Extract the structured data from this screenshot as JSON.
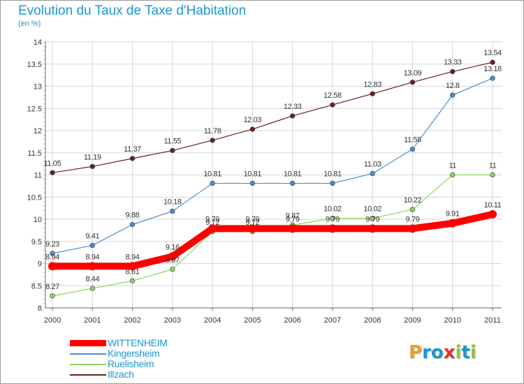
{
  "header": {
    "title": "Evolution du Taux de Taxe d'Habitation",
    "subtitle": "(en %)"
  },
  "logo": {
    "letters": [
      "P",
      "r",
      "o",
      "x",
      "i",
      "t",
      "i"
    ],
    "colors": [
      "#e8a02a",
      "#1c96d1",
      "#1c96d1",
      "#e5312b",
      "#8cc63f",
      "#1c96d1",
      "#8cc63f"
    ]
  },
  "chart_data": {
    "type": "line",
    "title": "Evolution du Taux de Taxe d'Habitation",
    "subtitle": "(en %)",
    "xlabel": "",
    "ylabel": "",
    "x": [
      "2000",
      "2001",
      "2002",
      "2003",
      "2004",
      "2005",
      "2006",
      "2007",
      "2008",
      "2009",
      "2010",
      "2011"
    ],
    "ylim": [
      8,
      14
    ],
    "yticks": [
      "8",
      "8.5",
      "9",
      "9.5",
      "10",
      "10.5",
      "11",
      "11.5",
      "12",
      "12.5",
      "13",
      "13.5",
      "14"
    ],
    "grid": true,
    "legend_position": "bottom-left",
    "series": [
      {
        "name": "Illzach",
        "color": "#6b1f1f",
        "values": [
          11.05,
          11.19,
          11.37,
          11.55,
          11.78,
          12.03,
          12.33,
          12.58,
          12.83,
          13.09,
          13.33,
          13.54
        ],
        "labels": [
          "11.05",
          "11.19",
          "11.37",
          "11.55",
          "11.78",
          "12.03",
          "12.33",
          "12.58",
          "12.83",
          "13.09",
          "13.33",
          "13.54"
        ]
      },
      {
        "name": "Kingersheim",
        "color": "#4a8fd0",
        "values": [
          9.23,
          9.41,
          9.88,
          10.18,
          10.81,
          10.81,
          10.81,
          10.81,
          11.03,
          11.58,
          12.8,
          13.18
        ],
        "labels": [
          "9.23",
          "9.41",
          "9.88",
          "10.18",
          "10.81",
          "10.81",
          "10.81",
          "10.81",
          "11.03",
          "11.58",
          "12.8",
          "13.18"
        ]
      },
      {
        "name": "Ruelisheim",
        "color": "#8cd65a",
        "values": [
          8.27,
          8.44,
          8.61,
          8.87,
          9.72,
          9.72,
          9.87,
          10.02,
          10.02,
          10.22,
          11,
          11
        ],
        "labels": [
          "8.27",
          "8.44",
          "8.61",
          "8.87",
          "9.72",
          "9.72",
          "9.87",
          "10.02",
          "10.02",
          "10.22",
          "11",
          "11"
        ]
      },
      {
        "name": "WITTENHEIM",
        "color": "#ff0000",
        "values": [
          8.94,
          8.94,
          8.94,
          9.16,
          9.79,
          9.79,
          9.79,
          9.79,
          9.79,
          9.79,
          9.91,
          10.11
        ],
        "labels": [
          "8.94",
          "8.94",
          "8.94",
          "9.16",
          "9.79",
          "9.79",
          "9.79",
          "9.79",
          "9.79",
          "9.79",
          "9.91",
          "10.11"
        ]
      }
    ],
    "legend": [
      "WITTENHEIM",
      "Kingersheim",
      "Ruelisheim",
      "Illzach"
    ]
  }
}
